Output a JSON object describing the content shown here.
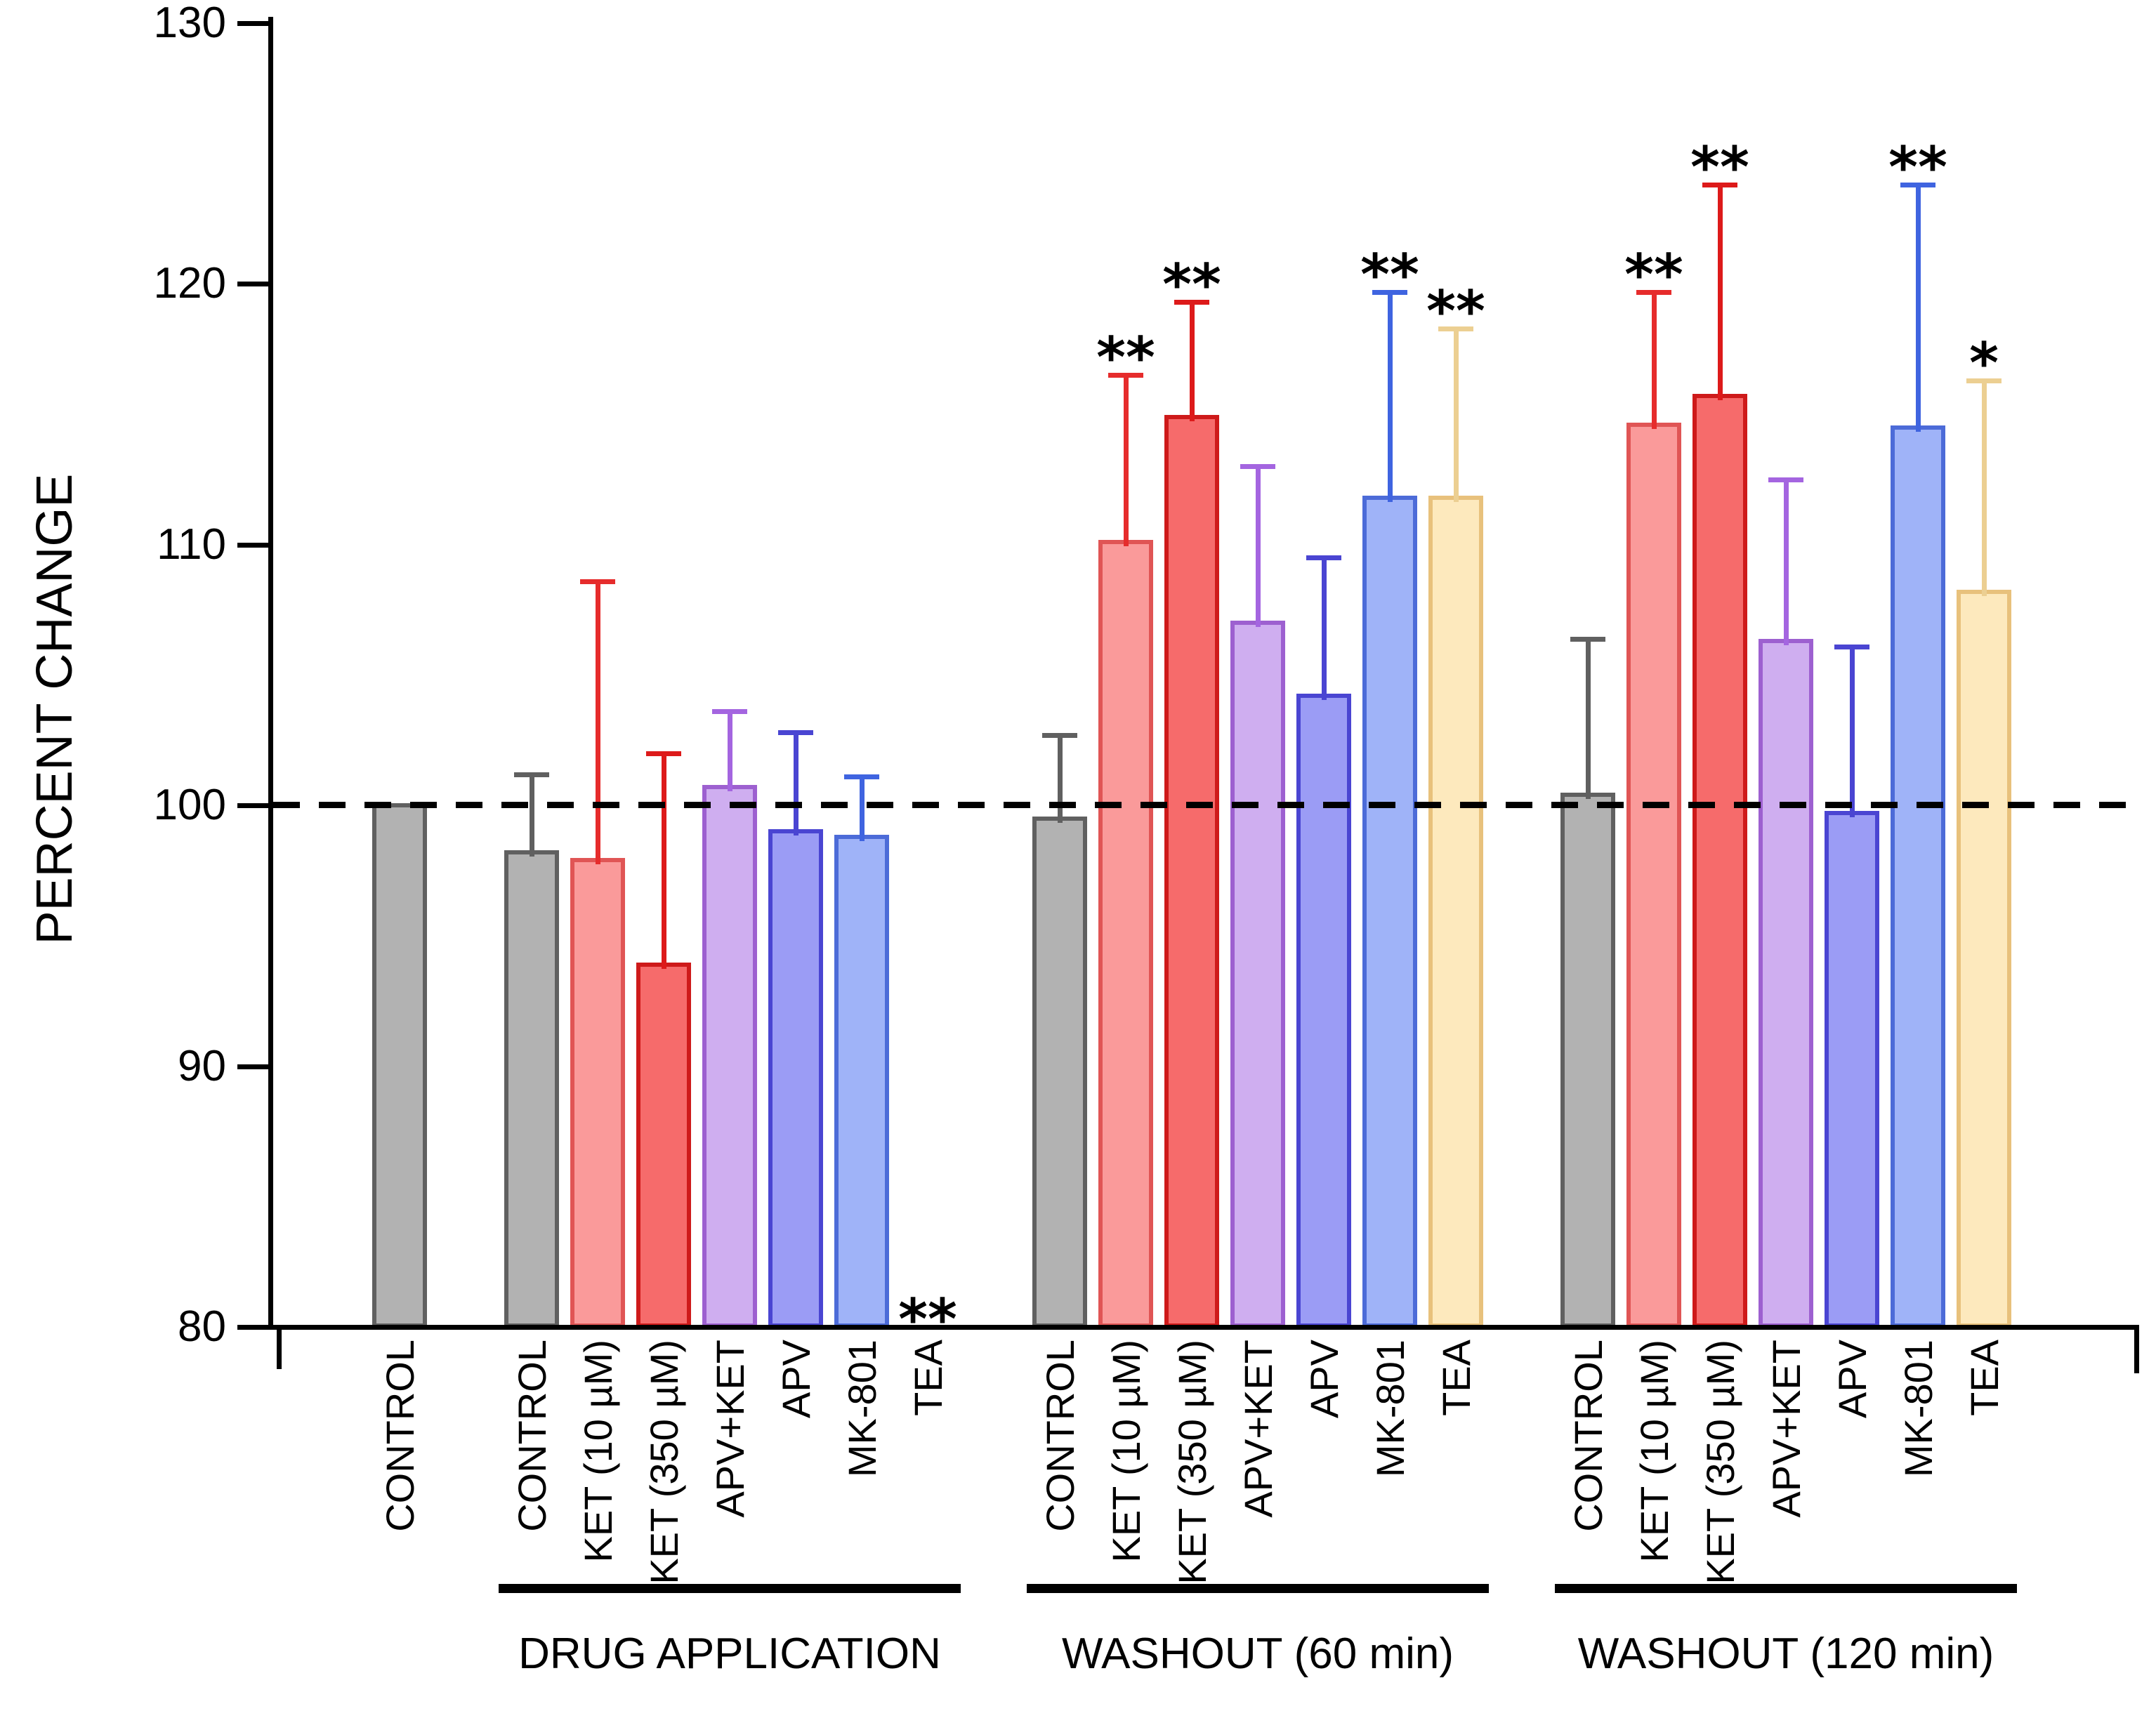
{
  "figure": {
    "background": "#ffffff",
    "ylabel": "PERCENT CHANGE"
  },
  "chart_data": {
    "type": "bar",
    "title": "",
    "xlabel": "",
    "ylabel": "PERCENT CHANGE",
    "ylim": [
      80,
      130
    ],
    "yticks": [
      "80",
      "90",
      "100",
      "110",
      "120",
      "130"
    ],
    "baseline": 100,
    "baseline_style": "black dashed horizontal line at 100",
    "grid": false,
    "legend": null,
    "error_bars": "upper whiskers with T caps",
    "significance_note": "** above whisker caps; * above TEA in WASHOUT (120 min); ** at axis for TEA in DRUG APPLICATION (bar below scale, not drawn)",
    "palette": {
      "control": {
        "fill": "#b2b2b2",
        "stroke": "#606060",
        "whisker": "#606060"
      },
      "ket10": {
        "fill": "#fa9a9a",
        "stroke": "#e05555",
        "whisker": "#e62c2c"
      },
      "ket350": {
        "fill": "#f66b6b",
        "stroke": "#ce1a1a",
        "whisker": "#dd1a1a"
      },
      "apv_ket": {
        "fill": "#cfaef0",
        "stroke": "#9d60d0",
        "whisker": "#a465e0"
      },
      "apv": {
        "fill": "#9b9cf5",
        "stroke": "#4a45d2",
        "whisker": "#4a45d2"
      },
      "mk801": {
        "fill": "#9fb3f8",
        "stroke": "#4c6bd8",
        "whisker": "#3f64e0"
      },
      "tea": {
        "fill": "#fde9bd",
        "stroke": "#e8c17c",
        "whisker": "#eccf92"
      }
    },
    "groups": [
      {
        "label": "",
        "bars": [
          {
            "category": "CONTROL",
            "value": 100.0,
            "error_top": null,
            "sig": "",
            "color": "control"
          }
        ]
      },
      {
        "label": "DRUG APPLICATION",
        "bars": [
          {
            "category": "CONTROL",
            "value": 98.2,
            "error_top": 101.2,
            "sig": "",
            "color": "control"
          },
          {
            "category": "KET (10 µM)",
            "value": 97.9,
            "error_top": 108.6,
            "sig": "",
            "color": "ket10"
          },
          {
            "category": "KET (350 µM)",
            "value": 93.9,
            "error_top": 102.0,
            "sig": "",
            "color": "ket350"
          },
          {
            "category": "APV+KET",
            "value": 100.7,
            "error_top": 103.6,
            "sig": "",
            "color": "apv_ket"
          },
          {
            "category": "APV",
            "value": 99.0,
            "error_top": 102.8,
            "sig": "",
            "color": "apv"
          },
          {
            "category": "MK-801",
            "value": 98.8,
            "error_top": 101.1,
            "sig": "",
            "color": "mk801"
          },
          {
            "category": "TEA",
            "value": null,
            "error_top": null,
            "sig": "**",
            "color": "tea",
            "note": "below scale"
          }
        ]
      },
      {
        "label": "WASHOUT (60 min)",
        "bars": [
          {
            "category": "CONTROL",
            "value": 99.5,
            "error_top": 102.7,
            "sig": "",
            "color": "control"
          },
          {
            "category": "KET (10 µM)",
            "value": 110.1,
            "error_top": 116.5,
            "sig": "**",
            "color": "ket10"
          },
          {
            "category": "KET (350 µM)",
            "value": 114.9,
            "error_top": 119.3,
            "sig": "**",
            "color": "ket350"
          },
          {
            "category": "APV+KET",
            "value": 107.0,
            "error_top": 113.0,
            "sig": "",
            "color": "apv_ket"
          },
          {
            "category": "APV",
            "value": 104.2,
            "error_top": 109.5,
            "sig": "",
            "color": "apv"
          },
          {
            "category": "MK-801",
            "value": 111.8,
            "error_top": 119.7,
            "sig": "**",
            "color": "mk801"
          },
          {
            "category": "TEA",
            "value": 111.8,
            "error_top": 118.3,
            "sig": "**",
            "color": "tea"
          }
        ]
      },
      {
        "label": "WASHOUT (120 min)",
        "bars": [
          {
            "category": "CONTROL",
            "value": 100.4,
            "error_top": 106.4,
            "sig": "",
            "color": "control"
          },
          {
            "category": "KET (10 µM)",
            "value": 114.6,
            "error_top": 119.7,
            "sig": "**",
            "color": "ket10"
          },
          {
            "category": "KET (350 µM)",
            "value": 115.7,
            "error_top": 123.8,
            "sig": "**",
            "color": "ket350"
          },
          {
            "category": "APV+KET",
            "value": 106.3,
            "error_top": 112.5,
            "sig": "",
            "color": "apv_ket"
          },
          {
            "category": "APV",
            "value": 99.7,
            "error_top": 106.1,
            "sig": "",
            "color": "apv"
          },
          {
            "category": "MK-801",
            "value": 114.5,
            "error_top": 123.8,
            "sig": "**",
            "color": "mk801"
          },
          {
            "category": "TEA",
            "value": 108.2,
            "error_top": 116.3,
            "sig": "*",
            "color": "tea"
          }
        ]
      }
    ]
  }
}
